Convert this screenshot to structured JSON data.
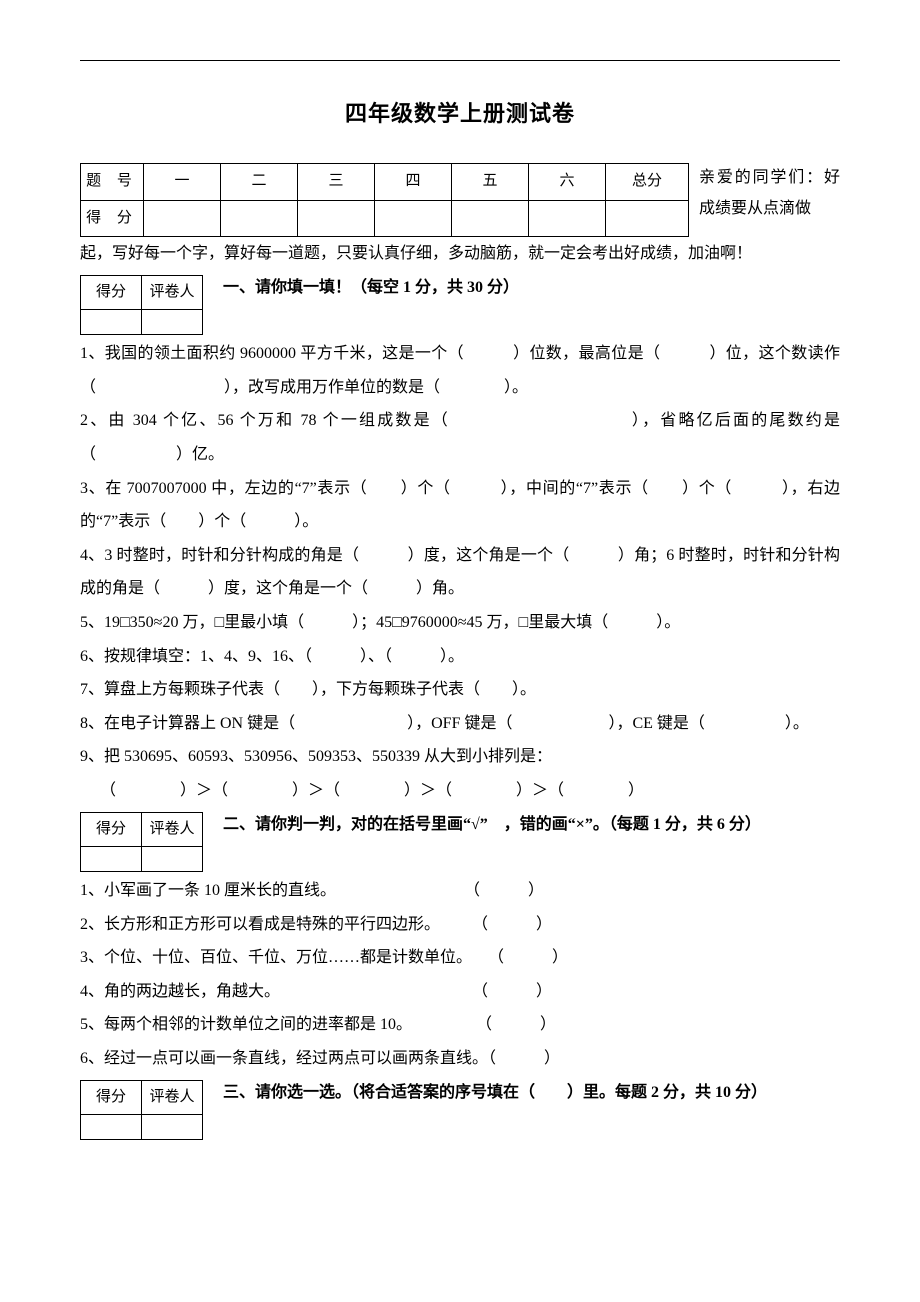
{
  "colors": {
    "text": "#000000",
    "bg": "#ffffff",
    "border": "#000000"
  },
  "fonts": {
    "body_family": "SimSun / 宋体",
    "body_size_pt": 12,
    "title_size_pt": 16,
    "line_height": 2.1
  },
  "title": "四年级数学上册测试卷",
  "score_table": {
    "row1_label": "题 号",
    "row2_label": "得 分",
    "cols": [
      "一",
      "二",
      "三",
      "四",
      "五",
      "六"
    ],
    "total_label": "总分"
  },
  "intro_aside": "亲爱的同学们：好成绩要从点滴做",
  "intro_cont": "起，写好每一个字，算好每一道题，只要认真仔细，多动脑筋，就一定会考出好成绩，加油啊！",
  "mini_table": {
    "c1": "得分",
    "c2": "评卷人"
  },
  "section1": {
    "heading": "一、请你填一填！（每空 1 分，共 30 分）",
    "q1": "1、我国的领土面积约 9600000 平方千米，这是一个（　　　）位数，最高位是（　　　）位，这个数读作（　　　　　　　　），改写成用万作单位的数是（　　　　）。",
    "q2": "2、由 304 个亿、56 个万和 78 个一组成数是（　　　　　　　　　　），省略亿后面的尾数约是（　　　　　）亿。",
    "q3": "3、在 7007007000 中，左边的“7”表示（　　）个（　　　），中间的“7”表示（　　）个（　　　），右边的“7”表示（　　）个（　　　）。",
    "q4": "4、3 时整时，时针和分针构成的角是（　　　）度，这个角是一个（　　　）角；6 时整时，时针和分针构成的角是（　　　）度，这个角是一个（　　　）角。",
    "q5": "5、19□350≈20 万，□里最小填（　　　）；45□9760000≈45 万，□里最大填（　　　）。",
    "q6": "6、按规律填空：1、4、9、16、（　　　）、（　　　）。",
    "q7": "7、算盘上方每颗珠子代表（　　），下方每颗珠子代表（　　）。",
    "q8": "8、在电子计算器上 ON 键是（　　　　　　　），OFF 键是（　　　　　　），CE 键是（　　　　　）。",
    "q9a": "9、把 530695、60593、530956、509353、550339 从大到小排列是：",
    "q9b": "（　　　　）＞（　　　　）＞（　　　　）＞（　　　　）＞（　　　　）"
  },
  "section2": {
    "heading": "二、请你判一判，对的在括号里画“√”　，错的画“×”。（每题 1 分，共 6 分）",
    "items": [
      "1、小军画了一条 10 厘米长的直线。　　　　　　　　　（　　　）",
      "2、长方形和正方形可以看成是特殊的平行四边形。　　　（　　　）",
      "3、个位、十位、百位、千位、万位……都是计数单位。　　（　　　）",
      "4、角的两边越长，角越大。　　　　　　　　　　　　　（　　　）",
      "5、每两个相邻的计数单位之间的进率都是 10。　　　　　（　　　）",
      "6、经过一点可以画一条直线，经过两点可以画两条直线。（　　　）"
    ]
  },
  "section3": {
    "heading": "三、请你选一选。（将合适答案的序号填在（　　）里。每题 2 分，共 10 分）"
  }
}
